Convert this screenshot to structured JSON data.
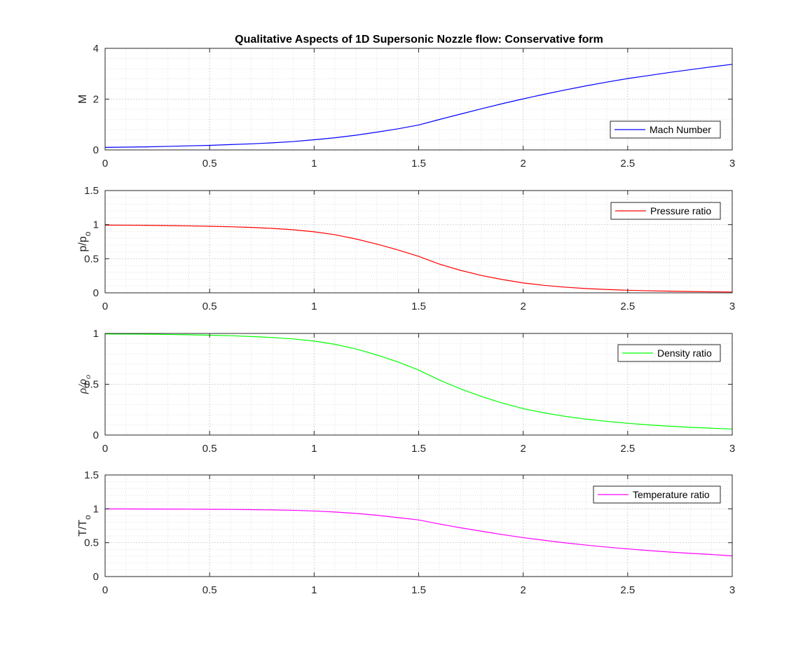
{
  "chart_data": [
    {
      "type": "line",
      "title": "Qualitative Aspects of 1D Supersonic Nozzle flow: Conservative form",
      "ylabel": {
        "main": "M",
        "sub": ""
      },
      "xlim": [
        0,
        3
      ],
      "ylim": [
        0,
        4
      ],
      "xticks": [
        "0",
        "0.5",
        "1",
        "1.5",
        "2",
        "2.5",
        "3"
      ],
      "yticks": [
        "0",
        "2",
        "4"
      ],
      "grid": true,
      "legend_position": "bottom-right",
      "series": [
        {
          "name": "Mach Number",
          "color": "#0000ff",
          "x": [
            0,
            0.1,
            0.2,
            0.3,
            0.4,
            0.5,
            0.6,
            0.7,
            0.8,
            0.9,
            1.0,
            1.1,
            1.2,
            1.3,
            1.4,
            1.5,
            1.6,
            1.7,
            1.8,
            1.9,
            2.0,
            2.1,
            2.2,
            2.3,
            2.4,
            2.5,
            2.6,
            2.7,
            2.8,
            2.9,
            3.0
          ],
          "y": [
            0.1,
            0.11,
            0.12,
            0.14,
            0.16,
            0.18,
            0.21,
            0.24,
            0.28,
            0.33,
            0.4,
            0.48,
            0.58,
            0.7,
            0.83,
            0.98,
            1.2,
            1.41,
            1.62,
            1.82,
            2.01,
            2.19,
            2.36,
            2.52,
            2.67,
            2.81,
            2.93,
            3.05,
            3.16,
            3.27,
            3.37
          ]
        }
      ]
    },
    {
      "type": "line",
      "ylabel": {
        "main": "p/p",
        "sub": "o"
      },
      "xlim": [
        0,
        3
      ],
      "ylim": [
        0,
        1.5
      ],
      "xticks": [
        "0",
        "0.5",
        "1",
        "1.5",
        "2",
        "2.5",
        "3"
      ],
      "yticks": [
        "0",
        "0.5",
        "1",
        "1.5"
      ],
      "grid": true,
      "legend_position": "top-right",
      "series": [
        {
          "name": "Pressure ratio",
          "color": "#ff0000",
          "x": [
            0,
            0.1,
            0.2,
            0.3,
            0.4,
            0.5,
            0.6,
            0.7,
            0.8,
            0.9,
            1.0,
            1.1,
            1.2,
            1.3,
            1.4,
            1.5,
            1.6,
            1.7,
            1.8,
            1.9,
            2.0,
            2.1,
            2.2,
            2.3,
            2.4,
            2.5,
            2.6,
            2.7,
            2.8,
            2.9,
            3.0
          ],
          "y": [
            0.993,
            0.992,
            0.99,
            0.986,
            0.982,
            0.976,
            0.969,
            0.959,
            0.945,
            0.925,
            0.895,
            0.852,
            0.79,
            0.715,
            0.63,
            0.535,
            0.42,
            0.33,
            0.255,
            0.195,
            0.145,
            0.11,
            0.083,
            0.063,
            0.049,
            0.038,
            0.03,
            0.024,
            0.019,
            0.015,
            0.012
          ]
        }
      ]
    },
    {
      "type": "line",
      "ylabel": {
        "main": "ρ/ρ",
        "sub": "o"
      },
      "xlim": [
        0,
        3
      ],
      "ylim": [
        0,
        1
      ],
      "xticks": [
        "0",
        "0.5",
        "1",
        "1.5",
        "2",
        "2.5",
        "3"
      ],
      "yticks": [
        "0",
        "0.5",
        "1"
      ],
      "grid": true,
      "legend_position": "top-right",
      "series": [
        {
          "name": "Density ratio",
          "color": "#00ff00",
          "x": [
            0,
            0.1,
            0.2,
            0.3,
            0.4,
            0.5,
            0.6,
            0.7,
            0.8,
            0.9,
            1.0,
            1.1,
            1.2,
            1.3,
            1.4,
            1.5,
            1.6,
            1.7,
            1.8,
            1.9,
            2.0,
            2.1,
            2.2,
            2.3,
            2.4,
            2.5,
            2.6,
            2.7,
            2.8,
            2.9,
            3.0
          ],
          "y": [
            0.995,
            0.994,
            0.993,
            0.99,
            0.987,
            0.983,
            0.978,
            0.97,
            0.96,
            0.946,
            0.925,
            0.893,
            0.848,
            0.788,
            0.72,
            0.64,
            0.54,
            0.455,
            0.38,
            0.315,
            0.26,
            0.218,
            0.184,
            0.157,
            0.135,
            0.116,
            0.1,
            0.087,
            0.076,
            0.067,
            0.059
          ]
        }
      ]
    },
    {
      "type": "line",
      "ylabel": {
        "main": "T/T",
        "sub": "o"
      },
      "xlim": [
        0,
        3
      ],
      "ylim": [
        0,
        1.5
      ],
      "xticks": [
        "0",
        "0.5",
        "1",
        "1.5",
        "2",
        "2.5",
        "3"
      ],
      "yticks": [
        "0",
        "0.5",
        "1",
        "1.5"
      ],
      "grid": true,
      "legend_position": "top-right",
      "series": [
        {
          "name": "Temperature ratio",
          "color": "#ff00ff",
          "x": [
            0,
            0.1,
            0.2,
            0.3,
            0.4,
            0.5,
            0.6,
            0.7,
            0.8,
            0.9,
            1.0,
            1.1,
            1.2,
            1.3,
            1.4,
            1.5,
            1.6,
            1.7,
            1.8,
            1.9,
            2.0,
            2.1,
            2.2,
            2.3,
            2.4,
            2.5,
            2.6,
            2.7,
            2.8,
            2.9,
            3.0
          ],
          "y": [
            0.998,
            0.998,
            0.997,
            0.996,
            0.995,
            0.993,
            0.991,
            0.988,
            0.984,
            0.978,
            0.968,
            0.953,
            0.932,
            0.905,
            0.87,
            0.836,
            0.775,
            0.72,
            0.67,
            0.62,
            0.575,
            0.535,
            0.498,
            0.465,
            0.435,
            0.408,
            0.384,
            0.362,
            0.343,
            0.326,
            0.305
          ]
        }
      ]
    }
  ]
}
